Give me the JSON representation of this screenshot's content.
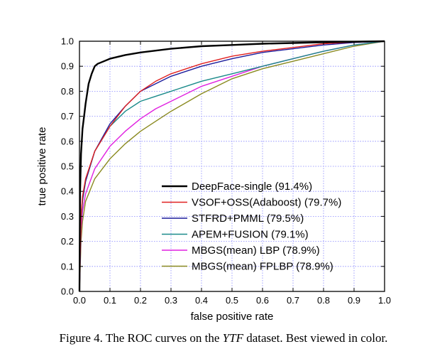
{
  "caption": {
    "prefix": "Figure 4. The ROC curves on the ",
    "dataset": "YTF",
    "suffix": " dataset. Best viewed in color."
  },
  "chart_data": {
    "type": "line",
    "xlabel": "false positive rate",
    "ylabel": "true positive rate",
    "xlim": [
      0.0,
      1.0
    ],
    "ylim": [
      0.0,
      1.0
    ],
    "xticks": [
      "0.0",
      "0.1",
      "0.2",
      "0.3",
      "0.4",
      "0.5",
      "0.6",
      "0.7",
      "0.8",
      "0.9",
      "1.0"
    ],
    "yticks": [
      "0.0",
      "0.1",
      "0.2",
      "0.3",
      "0.4",
      "0.5",
      "0.6",
      "0.7",
      "0.8",
      "0.9",
      "1.0"
    ],
    "grid": true,
    "legend_position": "bottom-right",
    "series": [
      {
        "name": "DeepFace-single (91.4%)",
        "color": "#000000",
        "x": [
          0,
          0.002,
          0.005,
          0.01,
          0.015,
          0.02,
          0.03,
          0.04,
          0.05,
          0.06,
          0.08,
          0.1,
          0.15,
          0.2,
          0.3,
          0.4,
          0.5,
          0.6,
          0.7,
          0.8,
          0.9,
          1.0
        ],
        "y": [
          0,
          0.4,
          0.55,
          0.65,
          0.7,
          0.75,
          0.83,
          0.87,
          0.9,
          0.91,
          0.92,
          0.93,
          0.945,
          0.955,
          0.97,
          0.98,
          0.985,
          0.99,
          0.993,
          0.996,
          0.998,
          1.0
        ]
      },
      {
        "name": "VSOF+OSS(Adaboost) (79.7%)",
        "color": "#e02020",
        "x": [
          0,
          0.005,
          0.01,
          0.02,
          0.05,
          0.1,
          0.15,
          0.2,
          0.25,
          0.3,
          0.4,
          0.5,
          0.6,
          0.7,
          0.8,
          0.9,
          1.0
        ],
        "y": [
          0,
          0.3,
          0.38,
          0.45,
          0.56,
          0.66,
          0.74,
          0.8,
          0.84,
          0.87,
          0.91,
          0.94,
          0.96,
          0.975,
          0.99,
          0.997,
          1.0
        ]
      },
      {
        "name": "STFRD+PMML (79.5%)",
        "color": "#1c1c9c",
        "x": [
          0,
          0.005,
          0.01,
          0.02,
          0.05,
          0.1,
          0.15,
          0.2,
          0.25,
          0.3,
          0.4,
          0.5,
          0.6,
          0.7,
          0.8,
          0.9,
          1.0
        ],
        "y": [
          0,
          0.3,
          0.37,
          0.44,
          0.56,
          0.67,
          0.74,
          0.8,
          0.83,
          0.86,
          0.9,
          0.93,
          0.955,
          0.97,
          0.985,
          0.995,
          1.0
        ]
      },
      {
        "name": "APEM+FUSION (79.1%)",
        "color": "#1a8a8a",
        "x": [
          0,
          0.005,
          0.01,
          0.02,
          0.05,
          0.1,
          0.15,
          0.2,
          0.25,
          0.3,
          0.4,
          0.5,
          0.6,
          0.7,
          0.8,
          0.9,
          1.0
        ],
        "y": [
          0,
          0.28,
          0.36,
          0.44,
          0.56,
          0.66,
          0.72,
          0.76,
          0.78,
          0.8,
          0.84,
          0.87,
          0.9,
          0.93,
          0.96,
          0.985,
          1.0
        ]
      },
      {
        "name": "MBGS(mean) LBP (78.9%)",
        "color": "#e020e0",
        "x": [
          0,
          0.005,
          0.01,
          0.02,
          0.05,
          0.1,
          0.15,
          0.2,
          0.25,
          0.3,
          0.4,
          0.5,
          0.6,
          0.7,
          0.8,
          0.9,
          1.0
        ],
        "y": [
          0,
          0.25,
          0.32,
          0.39,
          0.49,
          0.58,
          0.64,
          0.69,
          0.73,
          0.76,
          0.82,
          0.86,
          0.9,
          0.93,
          0.96,
          0.985,
          1.0
        ]
      },
      {
        "name": "MBGS(mean) FPLBP (78.9%)",
        "color": "#8a8a20",
        "x": [
          0,
          0.005,
          0.01,
          0.02,
          0.05,
          0.1,
          0.15,
          0.2,
          0.25,
          0.3,
          0.4,
          0.5,
          0.6,
          0.7,
          0.8,
          0.9,
          1.0
        ],
        "y": [
          0,
          0.2,
          0.28,
          0.36,
          0.45,
          0.53,
          0.59,
          0.64,
          0.68,
          0.72,
          0.79,
          0.85,
          0.89,
          0.92,
          0.95,
          0.98,
          1.0
        ]
      }
    ]
  }
}
